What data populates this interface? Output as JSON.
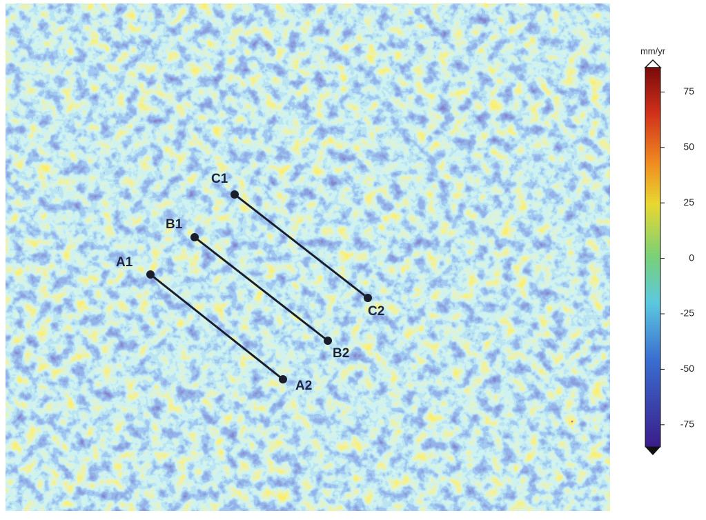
{
  "colorbar": {
    "unit": "mm/yr",
    "lim": [
      -85,
      86
    ],
    "ticks": [
      75,
      50,
      25,
      0,
      -25,
      -50,
      -75
    ]
  },
  "profiles": [
    {
      "start": "A1",
      "end": "A2"
    },
    {
      "start": "B1",
      "end": "B2"
    },
    {
      "start": "C1",
      "end": "C2"
    }
  ]
}
